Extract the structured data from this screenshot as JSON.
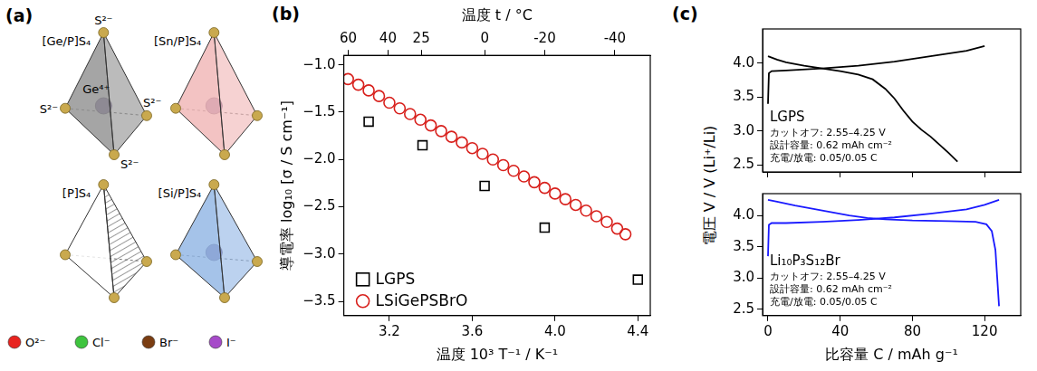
{
  "diagram": {
    "letter": "(a)",
    "tetrahedra": [
      {
        "label": "[Ge/P]S₄",
        "center_label": "Ge⁴⁺",
        "vertex_labels": [
          "S²⁻",
          "S²⁻",
          "S²⁻",
          "S²⁻"
        ],
        "color": "#8e8e8e",
        "center_color": "#8a7aa8"
      },
      {
        "label": "[Sn/P]S₄",
        "color": "#f0b4b4",
        "center_color": "#9a88b4"
      },
      {
        "label": "[P]S₄",
        "color": "#ffffff",
        "hatched": true
      },
      {
        "label": "[Si/P]S₄",
        "color": "#8fb4e4",
        "center_color": "#8a7aa8"
      }
    ],
    "vertex_color": "#c9a94e",
    "legend": [
      {
        "label": "O²⁻",
        "color": "#e8231f"
      },
      {
        "label": "Cl⁻",
        "color": "#3ec43e"
      },
      {
        "label": "Br⁻",
        "color": "#7a3d12"
      },
      {
        "label": "I⁻",
        "color": "#a64ac9"
      }
    ]
  },
  "chart_data": [
    {
      "type": "scatter",
      "letter": "(b)",
      "x_label": "温度 10³ T⁻¹ / K⁻¹",
      "x2_label": "温度 t / °C",
      "y_label": "導電率 log₁₀ [σ / S cm⁻¹]",
      "xlim": [
        2.98,
        4.46
      ],
      "xticks": [
        3.2,
        3.6,
        {
          "value": 4,
          "label": "4.0"
        },
        4.4
      ],
      "x2lim": [
        62.42,
        -48.94
      ],
      "x2ticks": [
        60,
        40,
        25,
        0,
        -20,
        -40
      ],
      "ylim": [
        -3.65,
        -0.9
      ],
      "yticks": [
        {
          "value": -1,
          "label": "−1.0"
        },
        {
          "value": -1.5,
          "label": "−1.5"
        },
        {
          "value": -2,
          "label": "−2.0"
        },
        {
          "value": -2.5,
          "label": "−2.5"
        },
        {
          "value": -3,
          "label": "−3.0"
        },
        {
          "value": -3.5,
          "label": "−3.5"
        }
      ],
      "grid": false,
      "legend": "lower left",
      "series": [
        {
          "name": "LGPS",
          "color": "#000000",
          "marker": "square",
          "x": [
            3.1,
            3.36,
            3.66,
            3.95,
            4.4
          ],
          "values": [
            -1.6,
            -1.85,
            -2.28,
            -2.72,
            -3.27
          ]
        },
        {
          "name": "LSiGePSBrO",
          "color": "#d8201c",
          "marker": "circle",
          "x": [
            3.0,
            3.05,
            3.1,
            3.15,
            3.2,
            3.25,
            3.3,
            3.35,
            3.4,
            3.45,
            3.5,
            3.55,
            3.6,
            3.65,
            3.7,
            3.75,
            3.8,
            3.85,
            3.9,
            3.95,
            4.0,
            4.05,
            4.1,
            4.15,
            4.2,
            4.25,
            4.3,
            4.34
          ],
          "values": [
            -1.15,
            -1.21,
            -1.27,
            -1.33,
            -1.4,
            -1.46,
            -1.52,
            -1.58,
            -1.64,
            -1.7,
            -1.76,
            -1.82,
            -1.88,
            -1.94,
            -2.0,
            -2.06,
            -2.12,
            -2.18,
            -2.24,
            -2.3,
            -2.36,
            -2.42,
            -2.48,
            -2.54,
            -2.6,
            -2.66,
            -2.73,
            -2.79
          ]
        }
      ]
    },
    {
      "type": "line",
      "letter": "(c)",
      "y_label": "電圧 V / V (Li⁺/Li)",
      "xlim": [
        -3,
        140
      ],
      "xticks": [
        0,
        40,
        80,
        120
      ],
      "ylim": [
        2.4,
        4.5
      ],
      "yticks": [
        2.5,
        {
          "value": 3,
          "label": "3.0"
        },
        3.5,
        {
          "value": 4,
          "label": "4.0"
        }
      ],
      "tick_labels": "y",
      "grid": false,
      "annotations": [
        "LGPS",
        "カットオフ: 2.55–4.25 V",
        "設計容量: 0.62 mAh cm⁻²",
        "充電/放電: 0.05/0.05 C"
      ],
      "series": [
        {
          "color": "#000000",
          "x": [
            0,
            0.5,
            2,
            10,
            30,
            50,
            70,
            90,
            110,
            120
          ],
          "values": [
            3.4,
            3.85,
            3.88,
            3.89,
            3.92,
            3.96,
            4.02,
            4.1,
            4.18,
            4.25
          ]
        },
        {
          "color": "#000000",
          "x": [
            0,
            5,
            10,
            20,
            30,
            40,
            50,
            58,
            65,
            70,
            75,
            80,
            85,
            90,
            95,
            100,
            105
          ],
          "values": [
            4.1,
            4.05,
            4.01,
            3.96,
            3.92,
            3.88,
            3.83,
            3.76,
            3.62,
            3.48,
            3.3,
            3.14,
            3.02,
            2.92,
            2.8,
            2.68,
            2.55
          ]
        }
      ]
    },
    {
      "type": "line",
      "x_label": "比容量 C / mAh g⁻¹",
      "xlim": [
        -3,
        140
      ],
      "xticks": [
        0,
        40,
        80,
        120
      ],
      "ylim": [
        2.4,
        4.35
      ],
      "yticks": [
        2.5,
        {
          "value": 3,
          "label": "3.0"
        },
        3.5,
        {
          "value": 4,
          "label": "4.0"
        }
      ],
      "grid": false,
      "annotations": [
        "Li₁₀P₃S₁₂Br",
        "カットオフ: 2.55–4.25 V",
        "設計容量: 0.62 mAh cm⁻²",
        "充電/放電: 0.05/0.05 C"
      ],
      "series": [
        {
          "color": "#1a1aff",
          "x": [
            0,
            0.5,
            2,
            10,
            30,
            50,
            70,
            90,
            110,
            120,
            128
          ],
          "values": [
            3.35,
            3.85,
            3.88,
            3.88,
            3.9,
            3.93,
            3.97,
            4.03,
            4.1,
            4.17,
            4.25
          ]
        },
        {
          "color": "#1a1aff",
          "x": [
            0,
            5,
            15,
            30,
            45,
            55,
            65,
            80,
            100,
            115,
            121,
            124,
            126,
            127,
            128
          ],
          "values": [
            4.25,
            4.22,
            4.16,
            4.08,
            4.0,
            3.96,
            3.94,
            3.92,
            3.91,
            3.9,
            3.86,
            3.75,
            3.45,
            3.0,
            2.55
          ]
        }
      ]
    }
  ]
}
